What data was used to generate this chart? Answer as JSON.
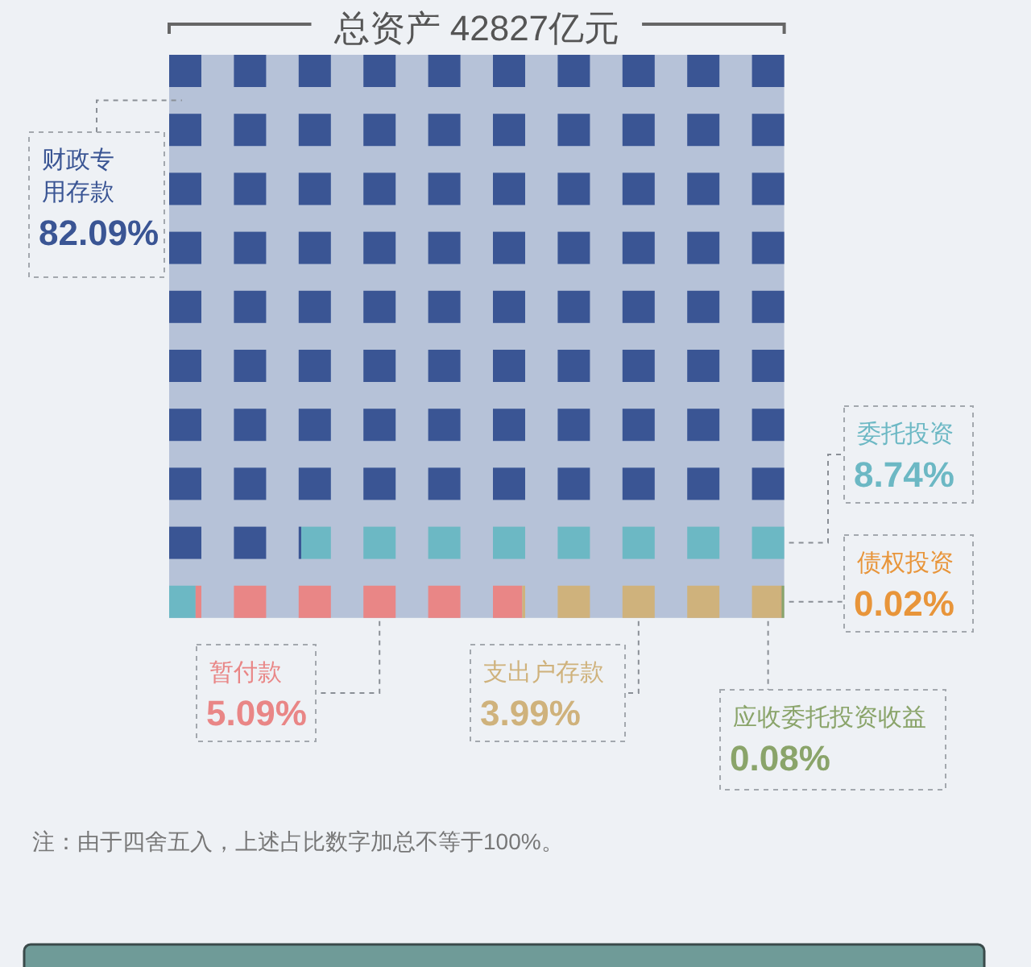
{
  "chart_data": {
    "type": "other",
    "title": "总资产 42827亿元",
    "categories": [
      "财政专用存款",
      "委托投资",
      "暂付款",
      "支出户存款",
      "债权投资",
      "应收委托投资收益"
    ],
    "values": [
      82.09,
      8.74,
      5.09,
      3.99,
      0.02,
      0.08
    ],
    "value_labels": [
      "82.09%",
      "8.74%",
      "5.09%",
      "3.99%",
      "0.02%",
      "0.08%"
    ],
    "colors": [
      "#3a5594",
      "#6cb8c4",
      "#e98686",
      "#cfb27c",
      "#e8953a",
      "#8aa46a"
    ],
    "annotations": [
      "注：由于四舍五入，上述占比数字加总不等于100%。"
    ]
  }
}
